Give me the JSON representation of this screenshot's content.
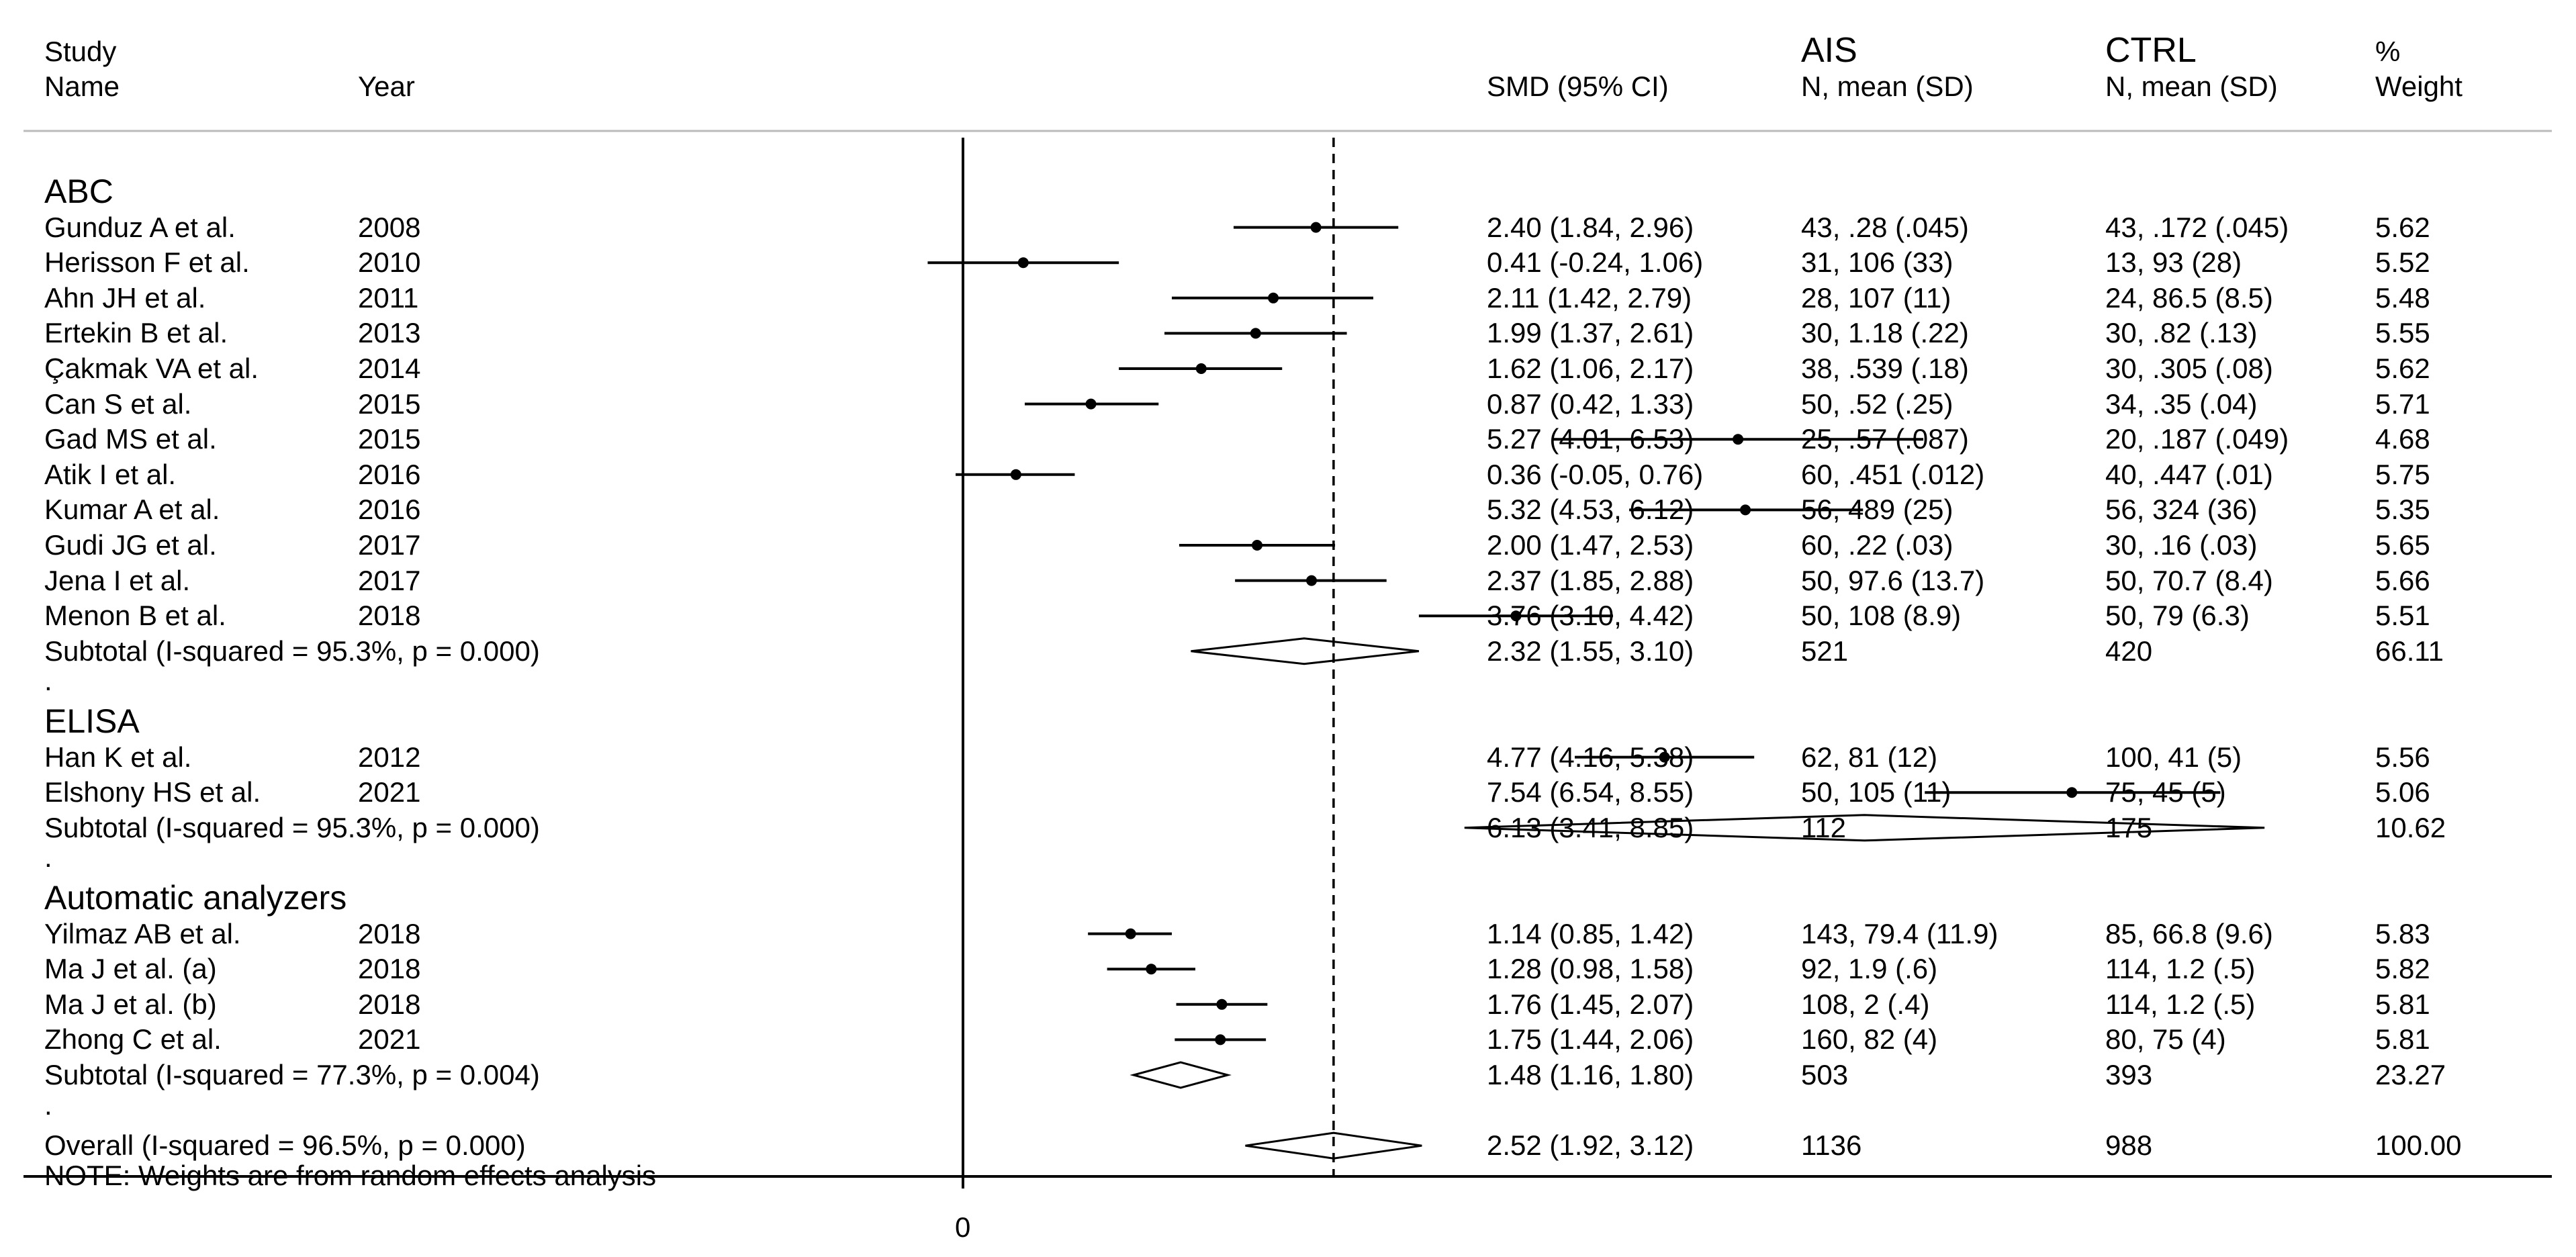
{
  "header": {
    "study": "Study",
    "name": "Name",
    "year": "Year",
    "smd": "SMD (95% CI)",
    "ais": "AIS",
    "ais_sub": "N, mean (SD)",
    "ctrl": "CTRL",
    "ctrl_sub": "N, mean (SD)",
    "weight_pct": "%",
    "weight": "Weight"
  },
  "chart_data": {
    "type": "forest",
    "title": "",
    "axis_tick_labels": [
      "0"
    ],
    "null_line": 0,
    "overall_line": 2.52,
    "groups": [
      {
        "name": "ABC",
        "studies": [
          {
            "name": "Gunduz A et al.",
            "year": "2008",
            "smd": 2.4,
            "lo": 1.84,
            "hi": 2.96,
            "ci_text": "2.40 (1.84, 2.96)",
            "ais": "43, .28 (.045)",
            "ctrl": "43, .172 (.045)",
            "weight": "5.62"
          },
          {
            "name": "Herisson F et al.",
            "year": "2010",
            "smd": 0.41,
            "lo": -0.24,
            "hi": 1.06,
            "ci_text": "0.41 (-0.24, 1.06)",
            "ais": "31, 106 (33)",
            "ctrl": "13, 93 (28)",
            "weight": "5.52"
          },
          {
            "name": "Ahn JH et al.",
            "year": "2011",
            "smd": 2.11,
            "lo": 1.42,
            "hi": 2.79,
            "ci_text": "2.11 (1.42, 2.79)",
            "ais": "28, 107 (11)",
            "ctrl": "24, 86.5 (8.5)",
            "weight": "5.48"
          },
          {
            "name": "Ertekin B et al.",
            "year": "2013",
            "smd": 1.99,
            "lo": 1.37,
            "hi": 2.61,
            "ci_text": "1.99 (1.37, 2.61)",
            "ais": "30, 1.18 (.22)",
            "ctrl": "30, .82 (.13)",
            "weight": "5.55"
          },
          {
            "name": "Çakmak VA et al.",
            "year": "2014",
            "smd": 1.62,
            "lo": 1.06,
            "hi": 2.17,
            "ci_text": "1.62 (1.06, 2.17)",
            "ais": "38, .539 (.18)",
            "ctrl": "30, .305 (.08)",
            "weight": "5.62"
          },
          {
            "name": "Can S et al.",
            "year": "2015",
            "smd": 0.87,
            "lo": 0.42,
            "hi": 1.33,
            "ci_text": "0.87 (0.42, 1.33)",
            "ais": "50, .52 (.25)",
            "ctrl": "34, .35 (.04)",
            "weight": "5.71"
          },
          {
            "name": "Gad MS et al.",
            "year": "2015",
            "smd": 5.27,
            "lo": 4.01,
            "hi": 6.53,
            "ci_text": "5.27 (4.01, 6.53)",
            "ais": "25, .57 (.087)",
            "ctrl": "20, .187 (.049)",
            "weight": "4.68"
          },
          {
            "name": "Atik I et al.",
            "year": "2016",
            "smd": 0.36,
            "lo": -0.05,
            "hi": 0.76,
            "ci_text": "0.36 (-0.05, 0.76)",
            "ais": "60, .451 (.012)",
            "ctrl": "40, .447 (.01)",
            "weight": "5.75"
          },
          {
            "name": "Kumar A et al.",
            "year": "2016",
            "smd": 5.32,
            "lo": 4.53,
            "hi": 6.12,
            "ci_text": "5.32 (4.53, 6.12)",
            "ais": "56, 489 (25)",
            "ctrl": "56, 324 (36)",
            "weight": "5.35"
          },
          {
            "name": "Gudi JG et al.",
            "year": "2017",
            "smd": 2.0,
            "lo": 1.47,
            "hi": 2.53,
            "ci_text": "2.00 (1.47, 2.53)",
            "ais": "60, .22 (.03)",
            "ctrl": "30, .16 (.03)",
            "weight": "5.65"
          },
          {
            "name": "Jena I et al.",
            "year": "2017",
            "smd": 2.37,
            "lo": 1.85,
            "hi": 2.88,
            "ci_text": "2.37 (1.85, 2.88)",
            "ais": "50, 97.6 (13.7)",
            "ctrl": "50, 70.7 (8.4)",
            "weight": "5.66"
          },
          {
            "name": "Menon B et al.",
            "year": "2018",
            "smd": 3.76,
            "lo": 3.1,
            "hi": 4.42,
            "ci_text": "3.76 (3.10, 4.42)",
            "ais": "50, 108 (8.9)",
            "ctrl": "50, 79 (6.3)",
            "weight": "5.51"
          }
        ],
        "subtotal": {
          "label": "Subtotal  (I-squared = 95.3%, p = 0.000)",
          "smd": 2.32,
          "lo": 1.55,
          "hi": 3.1,
          "ci_text": "2.32 (1.55, 3.10)",
          "ais": "521",
          "ctrl": "420",
          "weight": "66.11"
        }
      },
      {
        "name": "ELISA",
        "studies": [
          {
            "name": "Han K et al.",
            "year": "2012",
            "smd": 4.77,
            "lo": 4.16,
            "hi": 5.38,
            "ci_text": "4.77 (4.16, 5.38)",
            "ais": "62, 81 (12)",
            "ctrl": "100, 41 (5)",
            "weight": "5.56"
          },
          {
            "name": "Elshony HS et al.",
            "year": "2021",
            "smd": 7.54,
            "lo": 6.54,
            "hi": 8.55,
            "ci_text": "7.54 (6.54, 8.55)",
            "ais": "50, 105 (11)",
            "ctrl": "75, 45 (5)",
            "weight": "5.06"
          }
        ],
        "subtotal": {
          "label": "Subtotal  (I-squared = 95.3%, p = 0.000)",
          "smd": 6.13,
          "lo": 3.41,
          "hi": 8.85,
          "ci_text": "6.13 (3.41, 8.85)",
          "ais": "112",
          "ctrl": "175",
          "weight": "10.62"
        }
      },
      {
        "name": "Automatic analyzers",
        "studies": [
          {
            "name": "Yilmaz AB et al.",
            "year": "2018",
            "smd": 1.14,
            "lo": 0.85,
            "hi": 1.42,
            "ci_text": "1.14 (0.85, 1.42)",
            "ais": "143, 79.4 (11.9)",
            "ctrl": "85, 66.8 (9.6)",
            "weight": "5.83"
          },
          {
            "name": "Ma J et al. (a)",
            "year": "2018",
            "smd": 1.28,
            "lo": 0.98,
            "hi": 1.58,
            "ci_text": "1.28 (0.98, 1.58)",
            "ais": "92, 1.9 (.6)",
            "ctrl": "114, 1.2 (.5)",
            "weight": "5.82"
          },
          {
            "name": "Ma J et al. (b)",
            "year": "2018",
            "smd": 1.76,
            "lo": 1.45,
            "hi": 2.07,
            "ci_text": "1.76 (1.45, 2.07)",
            "ais": "108, 2 (.4)",
            "ctrl": "114, 1.2 (.5)",
            "weight": "5.81"
          },
          {
            "name": "Zhong C et al.",
            "year": "2021",
            "smd": 1.75,
            "lo": 1.44,
            "hi": 2.06,
            "ci_text": "1.75 (1.44, 2.06)",
            "ais": "160, 82 (4)",
            "ctrl": "80, 75 (4)",
            "weight": "5.81"
          }
        ],
        "subtotal": {
          "label": "Subtotal  (I-squared = 77.3%, p = 0.004)",
          "smd": 1.48,
          "lo": 1.16,
          "hi": 1.8,
          "ci_text": "1.48 (1.16, 1.80)",
          "ais": "503",
          "ctrl": "393",
          "weight": "23.27"
        }
      }
    ],
    "overall": {
      "label": "Overall  (I-squared = 96.5%, p = 0.000)",
      "smd": 2.52,
      "lo": 1.92,
      "hi": 3.12,
      "ci_text": "2.52 (1.92, 3.12)",
      "ais": "1136",
      "ctrl": "988",
      "weight": "100.00"
    },
    "note": "NOTE: Weights are from random effects analysis",
    "separator_dot": "."
  }
}
